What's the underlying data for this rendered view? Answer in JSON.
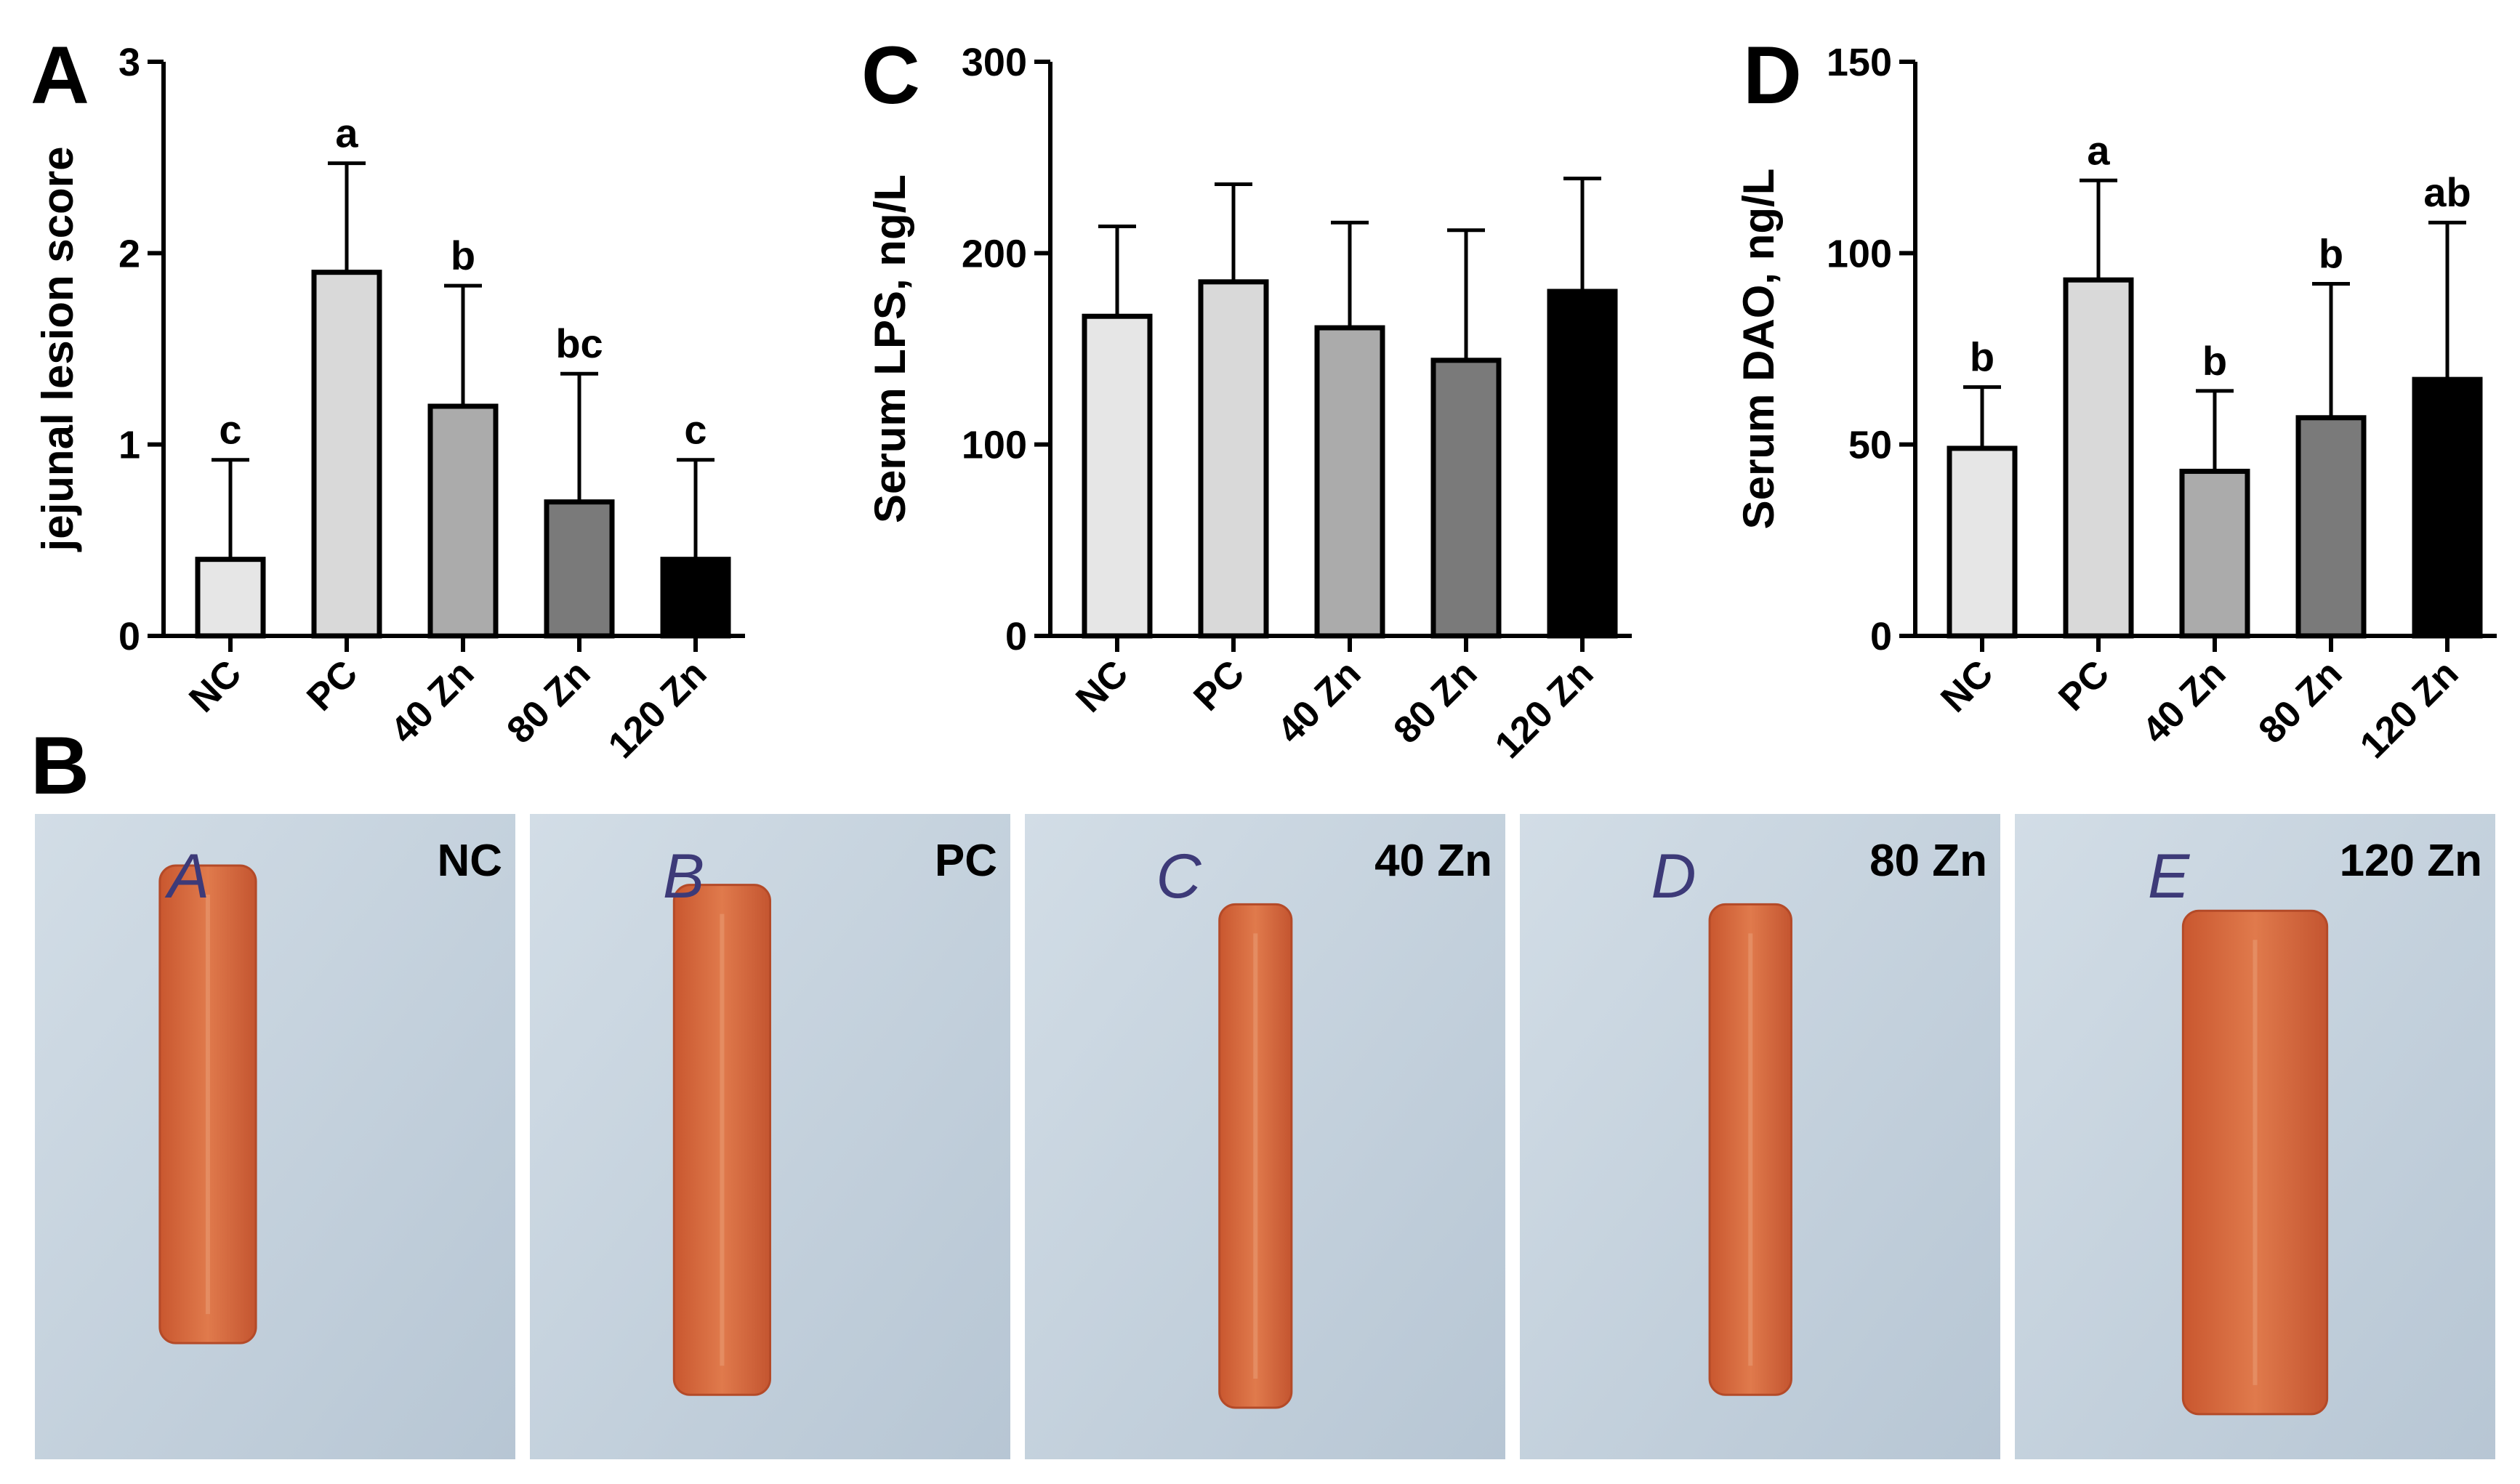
{
  "panel_labels": {
    "a": "A",
    "b": "B",
    "c": "C",
    "d": "D"
  },
  "colors": {
    "NC": "#e6e6e6",
    "PC": "#d9d9d9",
    "40 Zn": "#ababab",
    "80 Zn": "#7a7a7a",
    "120 Zn": "#000000",
    "photo_background": "#c4d3e0",
    "tissue": "#d5673e"
  },
  "chart_data": [
    {
      "type": "bar",
      "panel": "A",
      "ylabel": "jejunal lesion score",
      "categories": [
        "NC",
        "PC",
        "40 Zn",
        "80 Zn",
        "120 Zn"
      ],
      "values": [
        0.4,
        1.9,
        1.2,
        0.7,
        0.4
      ],
      "error_upper": [
        0.52,
        0.57,
        0.63,
        0.67,
        0.52
      ],
      "significance_letters": [
        "c",
        "a",
        "b",
        "bc",
        "c"
      ],
      "ylim": [
        0,
        3
      ],
      "yticks": [
        "0",
        "1",
        "2",
        "3"
      ],
      "grid": false,
      "legend": "none"
    },
    {
      "type": "bar",
      "panel": "C",
      "ylabel": "Serum LPS, ng/L",
      "categories": [
        "NC",
        "PC",
        "40 Zn",
        "80 Zn",
        "120 Zn"
      ],
      "values": [
        167,
        185,
        161,
        144,
        180
      ],
      "error_upper": [
        47,
        51,
        55,
        68,
        59
      ],
      "significance_letters": [
        "",
        "",
        "",
        "",
        ""
      ],
      "ylim": [
        0,
        300
      ],
      "yticks": [
        "0",
        "100",
        "200",
        "300"
      ],
      "grid": false,
      "legend": "none"
    },
    {
      "type": "bar",
      "panel": "D",
      "ylabel": "Serum DAO, ng/L",
      "categories": [
        "NC",
        "PC",
        "40 Zn",
        "80 Zn",
        "120 Zn"
      ],
      "values": [
        49,
        93,
        43,
        57,
        67
      ],
      "error_upper": [
        16,
        26,
        21,
        35,
        41
      ],
      "significance_letters": [
        "b",
        "a",
        "b",
        "b",
        "ab"
      ],
      "ylim": [
        0,
        150
      ],
      "yticks": [
        "0",
        "50",
        "100",
        "150"
      ],
      "grid": false,
      "legend": "none"
    }
  ],
  "photos": [
    {
      "marker": "A",
      "label": "NC"
    },
    {
      "marker": "B",
      "label": "PC"
    },
    {
      "marker": "C",
      "label": "40 Zn"
    },
    {
      "marker": "D",
      "label": "80 Zn"
    },
    {
      "marker": "E",
      "label": "120 Zn"
    }
  ]
}
